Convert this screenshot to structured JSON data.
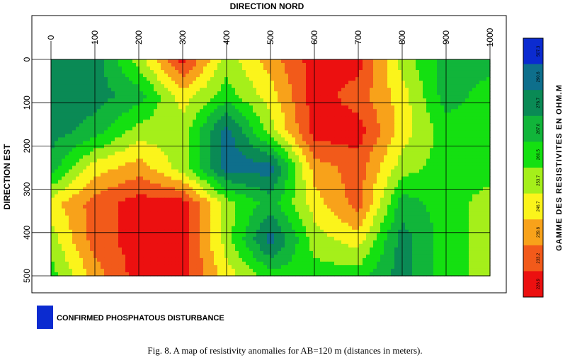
{
  "chart_data": {
    "type": "heatmap",
    "title": "DIRECTION NORD",
    "xlabel": "DIRECTION NORD",
    "ylabel": "DIRECTION EST",
    "x_ticks": [
      0,
      100,
      200,
      300,
      400,
      500,
      600,
      700,
      800,
      900,
      1000
    ],
    "y_ticks": [
      0,
      100,
      200,
      300,
      400,
      500
    ],
    "xlim": [
      0,
      1000
    ],
    "ylim": [
      0,
      500
    ],
    "colorbar": {
      "title": "GAMME DES RESISTIVITES EN OHM.M",
      "levels": [
        "507.3",
        "290.6",
        "276.7",
        "267.0",
        "260.5",
        "253.7",
        "246.7",
        "239.8",
        "233.2",
        "226.9"
      ],
      "colors": [
        "#0b2bd0",
        "#0e6f8c",
        "#0a8a55",
        "#11b53a",
        "#14e011",
        "#a5ef1a",
        "#fbf41b",
        "#f8a21a",
        "#f25a1a",
        "#ec1010"
      ]
    },
    "grid_values": [
      [
        2,
        2,
        5,
        9,
        5,
        7,
        9,
        9,
        5,
        3,
        3
      ],
      [
        2,
        2,
        3,
        6,
        4,
        6,
        9,
        8,
        6,
        3,
        4
      ],
      [
        2,
        3,
        5,
        5,
        1,
        5,
        9,
        9,
        6,
        4,
        4
      ],
      [
        3,
        6,
        7,
        5,
        1,
        1,
        7,
        8,
        5,
        4,
        4
      ],
      [
        6,
        8,
        9,
        9,
        5,
        3,
        6,
        8,
        3,
        4,
        5
      ],
      [
        5,
        8,
        9,
        9,
        5,
        1,
        5,
        6,
        2,
        4,
        5
      ],
      [
        4,
        7,
        9,
        9,
        6,
        4,
        4,
        4,
        2,
        4,
        5
      ]
    ]
  },
  "legend": {
    "label": "CONFIRMED PHOSPHATOUS DISTURBANCE",
    "color": "#0b2bd0"
  },
  "caption": "Fig.  8. A map of resistivity anomalies for AB=120 m (distances in meters)."
}
